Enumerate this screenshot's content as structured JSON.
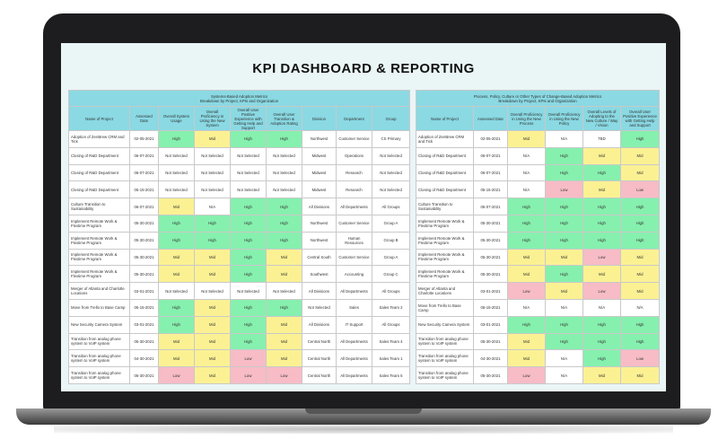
{
  "title": "KPI DASHBOARD & REPORTING",
  "rating_colors": {
    "High": "#86f0ae",
    "Mid": "#fbf193",
    "Low": "#f7bcc6"
  },
  "tables": [
    {
      "heading": [
        "Systems-Based Adoption Metrics",
        "Breakdown by Project, KPIs and Organization"
      ],
      "columns": [
        "Name of Project",
        "Assessed Date",
        "Overall System Usage",
        "Overall Proficiency in Using the New System",
        "Overall User Positive Experience with Getting Help and Support",
        "Overall User Transition & Adoption Rating",
        "Division",
        "Department",
        "Group"
      ],
      "rows": [
        [
          "Adoption of ZenBrew CRM and Tick",
          "02-05-2021",
          "High",
          "Mid",
          "High",
          "High",
          "Northwest",
          "Customer Service",
          "CS Primary"
        ],
        [
          "Closing of R&D Department",
          "06-07-2021",
          "Not Selected",
          "Not Selected",
          "Not Selected",
          "Not Selected",
          "Midwest",
          "Operations",
          "Not Selected"
        ],
        [
          "Closing of R&D Department",
          "06-07-2021",
          "Not Selected",
          "Not Selected",
          "Not Selected",
          "Not Selected",
          "Midwest",
          "Research",
          "Not Selected"
        ],
        [
          "Closing of R&D Department",
          "05-15-2021",
          "Not Selected",
          "Not Selected",
          "Not Selected",
          "Not Selected",
          "Midwest",
          "Research",
          "Not Selected"
        ],
        [
          "Culture Transition to Sustainability",
          "06-07-2021",
          "Mid",
          "N/A",
          "High",
          "High",
          "All Divisions",
          "All Departments",
          "All Groups"
        ],
        [
          "Implement Remote Work & Flextime Program",
          "05-30-2021",
          "High",
          "High",
          "High",
          "High",
          "Northwest",
          "Customer Service",
          "Group A"
        ],
        [
          "Implement Remote Work & Flextime Program",
          "05-30-2021",
          "High",
          "High",
          "High",
          "High",
          "Northwest",
          "Human Resources",
          "Group B"
        ],
        [
          "Implement Remote Work & Flextime Program",
          "05-30-2021",
          "Mid",
          "Mid",
          "High",
          "Mid",
          "Central South",
          "Customer Service",
          "Group A"
        ],
        [
          "Implement Remote Work & Flextime Program",
          "05-30-2021",
          "Mid",
          "Mid",
          "High",
          "Mid",
          "Southwest",
          "Accounting",
          "Group C"
        ],
        [
          "Merger of Atlanta and Charlotte Locations",
          "03-01-2021",
          "Not Selected",
          "Not Selected",
          "Not Selected",
          "Not Selected",
          "All Divisions",
          "All Departments",
          "All Groups"
        ],
        [
          "Move from Trello to Base Camp",
          "05-15-2021",
          "High",
          "Mid",
          "High",
          "High",
          "Not Selected",
          "Sales",
          "Sales Team 2"
        ],
        [
          "New Security Camera System",
          "03-01-2021",
          "High",
          "Mid",
          "High",
          "Mid",
          "All Divisions",
          "IT Support",
          "All Groups"
        ],
        [
          "Transition from analog phone system to VoIP system",
          "05-30-2021",
          "Mid",
          "Mid",
          "High",
          "Mid",
          "Central North",
          "All Departments",
          "Sales Team 4"
        ],
        [
          "Transition from analog phone system to VoIP system",
          "04-30-2021",
          "Mid",
          "Mid",
          "Low",
          "Mid",
          "Central North",
          "All Departments",
          "Sales Team 1"
        ],
        [
          "Transition from analog phone system to VoIP system",
          "05-30-2021",
          "Low",
          "Mid",
          "Low",
          "Low",
          "Central North",
          "All Departments",
          "Sales Team 5"
        ]
      ]
    },
    {
      "heading": [
        "Process, Policy, Culture or Other Types of Change-Based Adoption Metrics",
        "Breakdown by Project, KPIs and Organization"
      ],
      "columns": [
        "Name of Project",
        "Assessed Date",
        "Overall Proficiency in Using the New Process",
        "Overall Proficiency in Using the New Policy",
        "Overall Levels of Adopting to the New Culture / Way / Vision",
        "Overall User Positive Experience with Getting Help and Support"
      ],
      "rows": [
        [
          "Adoption of ZenBrew CRM and Tick",
          "02-05-2021",
          "Mid",
          "N/A",
          "TBD",
          "High"
        ],
        [
          "Closing of R&D Department",
          "06-07-2021",
          "N/A",
          "High",
          "Mid",
          "Mid"
        ],
        [
          "Closing of R&D Department",
          "06-07-2021",
          "N/A",
          "High",
          "High",
          "Mid"
        ],
        [
          "Closing of R&D Department",
          "05-15-2021",
          "N/A",
          "Low",
          "Mid",
          "Low"
        ],
        [
          "Culture Transition to Sustainability",
          "06-07-2021",
          "High",
          "High",
          "High",
          "High"
        ],
        [
          "Implement Remote Work & Flextime Program",
          "05-30-2021",
          "High",
          "High",
          "High",
          "High"
        ],
        [
          "Implement Remote Work & Flextime Program",
          "05-30-2021",
          "High",
          "High",
          "High",
          "High"
        ],
        [
          "Implement Remote Work & Flextime Program",
          "05-30-2021",
          "Mid",
          "Mid",
          "Low",
          "Mid"
        ],
        [
          "Implement Remote Work & Flextime Program",
          "05-30-2021",
          "Mid",
          "High",
          "Mid",
          "Mid"
        ],
        [
          "Merger of Atlanta and Charlotte Locations",
          "03-01-2021",
          "Low",
          "Mid",
          "Low",
          "Mid"
        ],
        [
          "Move from Trello to Base Camp",
          "05-15-2021",
          "N/A",
          "N/A",
          "N/A",
          "N/A"
        ],
        [
          "New Security Camera System",
          "03-01-2021",
          "High",
          "High",
          "High",
          "High"
        ],
        [
          "Transition from analog phone system to VoIP system",
          "05-30-2021",
          "Mid",
          "High",
          "High",
          "High"
        ],
        [
          "Transition from analog phone system to VoIP system",
          "04-30-2021",
          "Mid",
          "N/A",
          "High",
          "Low"
        ],
        [
          "Transition from analog phone system to VoIP system",
          "05-30-2021",
          "Low",
          "N/A",
          "Mid",
          "Mid"
        ]
      ]
    }
  ]
}
